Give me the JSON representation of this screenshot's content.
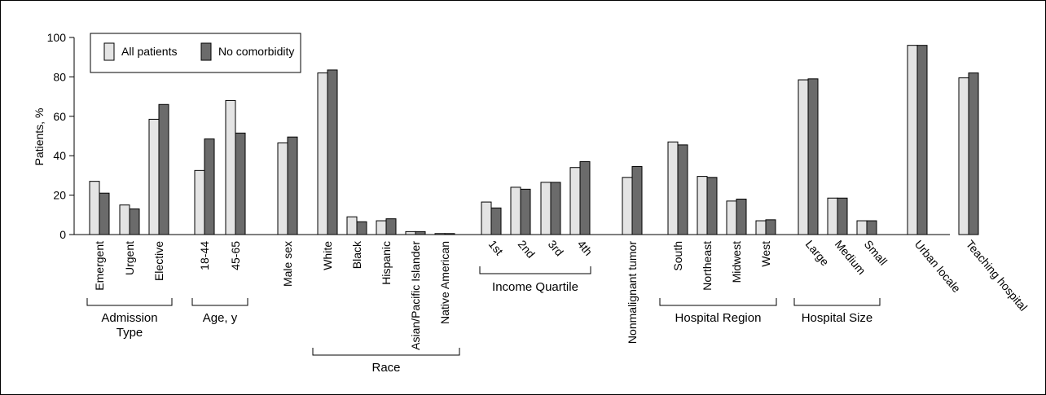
{
  "chart_data": {
    "type": "bar",
    "title": "",
    "xlabel": "",
    "ylabel": "Patients, %",
    "ylim": [
      0,
      100
    ],
    "yticks": [
      0,
      20,
      40,
      60,
      80,
      100
    ],
    "legend_position": "top-left",
    "categories": [
      "Emergent",
      "Urgent",
      "Elective",
      "18-44",
      "45-65",
      "Male sex",
      "White",
      "Black",
      "Hispanic",
      "Asian/Pacific Islander",
      "Native American",
      "1st",
      "2nd",
      "3rd",
      "4th",
      "Nonmalignant tumor",
      "South",
      "Northeast",
      "Midwest",
      "West",
      "Large",
      "Medium",
      "Small",
      "Urban locale",
      "Teaching hospital"
    ],
    "series": [
      {
        "name": "All patients",
        "color": "#e4e4e4",
        "values": [
          27,
          15,
          58.5,
          32.5,
          68,
          46.5,
          82,
          9,
          7,
          1.5,
          0.5,
          16.5,
          24,
          26.5,
          34,
          29,
          47,
          29.5,
          17,
          7,
          78.5,
          18.5,
          7,
          96,
          79.5
        ]
      },
      {
        "name": "No comorbidity",
        "color": "#6b6b6b",
        "values": [
          21,
          13,
          66,
          48.5,
          51.5,
          49.5,
          83.5,
          6.5,
          8,
          1.5,
          0.5,
          13.5,
          23,
          26.5,
          37,
          34.5,
          45.5,
          29,
          18,
          7.5,
          79,
          18.5,
          7,
          96,
          82
        ]
      }
    ],
    "groups": [
      {
        "label": "Admission Type",
        "label_lines": [
          "Admission",
          "Type"
        ],
        "members": [
          "Emergent",
          "Urgent",
          "Elective"
        ]
      },
      {
        "label": "Age, y",
        "label_lines": [
          "Age, y"
        ],
        "members": [
          "18-44",
          "45-65"
        ]
      },
      {
        "label": "Race",
        "label_lines": [
          "Race"
        ],
        "members": [
          "White",
          "Black",
          "Hispanic",
          "Asian/Pacific Islander",
          "Native American"
        ]
      },
      {
        "label": "Income Quartile",
        "label_lines": [
          "Income Quartile"
        ],
        "members": [
          "1st",
          "2nd",
          "3rd",
          "4th"
        ]
      },
      {
        "label": "Hospital Region",
        "label_lines": [
          "Hospital Region"
        ],
        "members": [
          "South",
          "Northeast",
          "Midwest",
          "West"
        ]
      },
      {
        "label": "Hospital Size",
        "label_lines": [
          "Hospital Size"
        ],
        "members": [
          "Large",
          "Medium",
          "Small"
        ]
      }
    ]
  }
}
